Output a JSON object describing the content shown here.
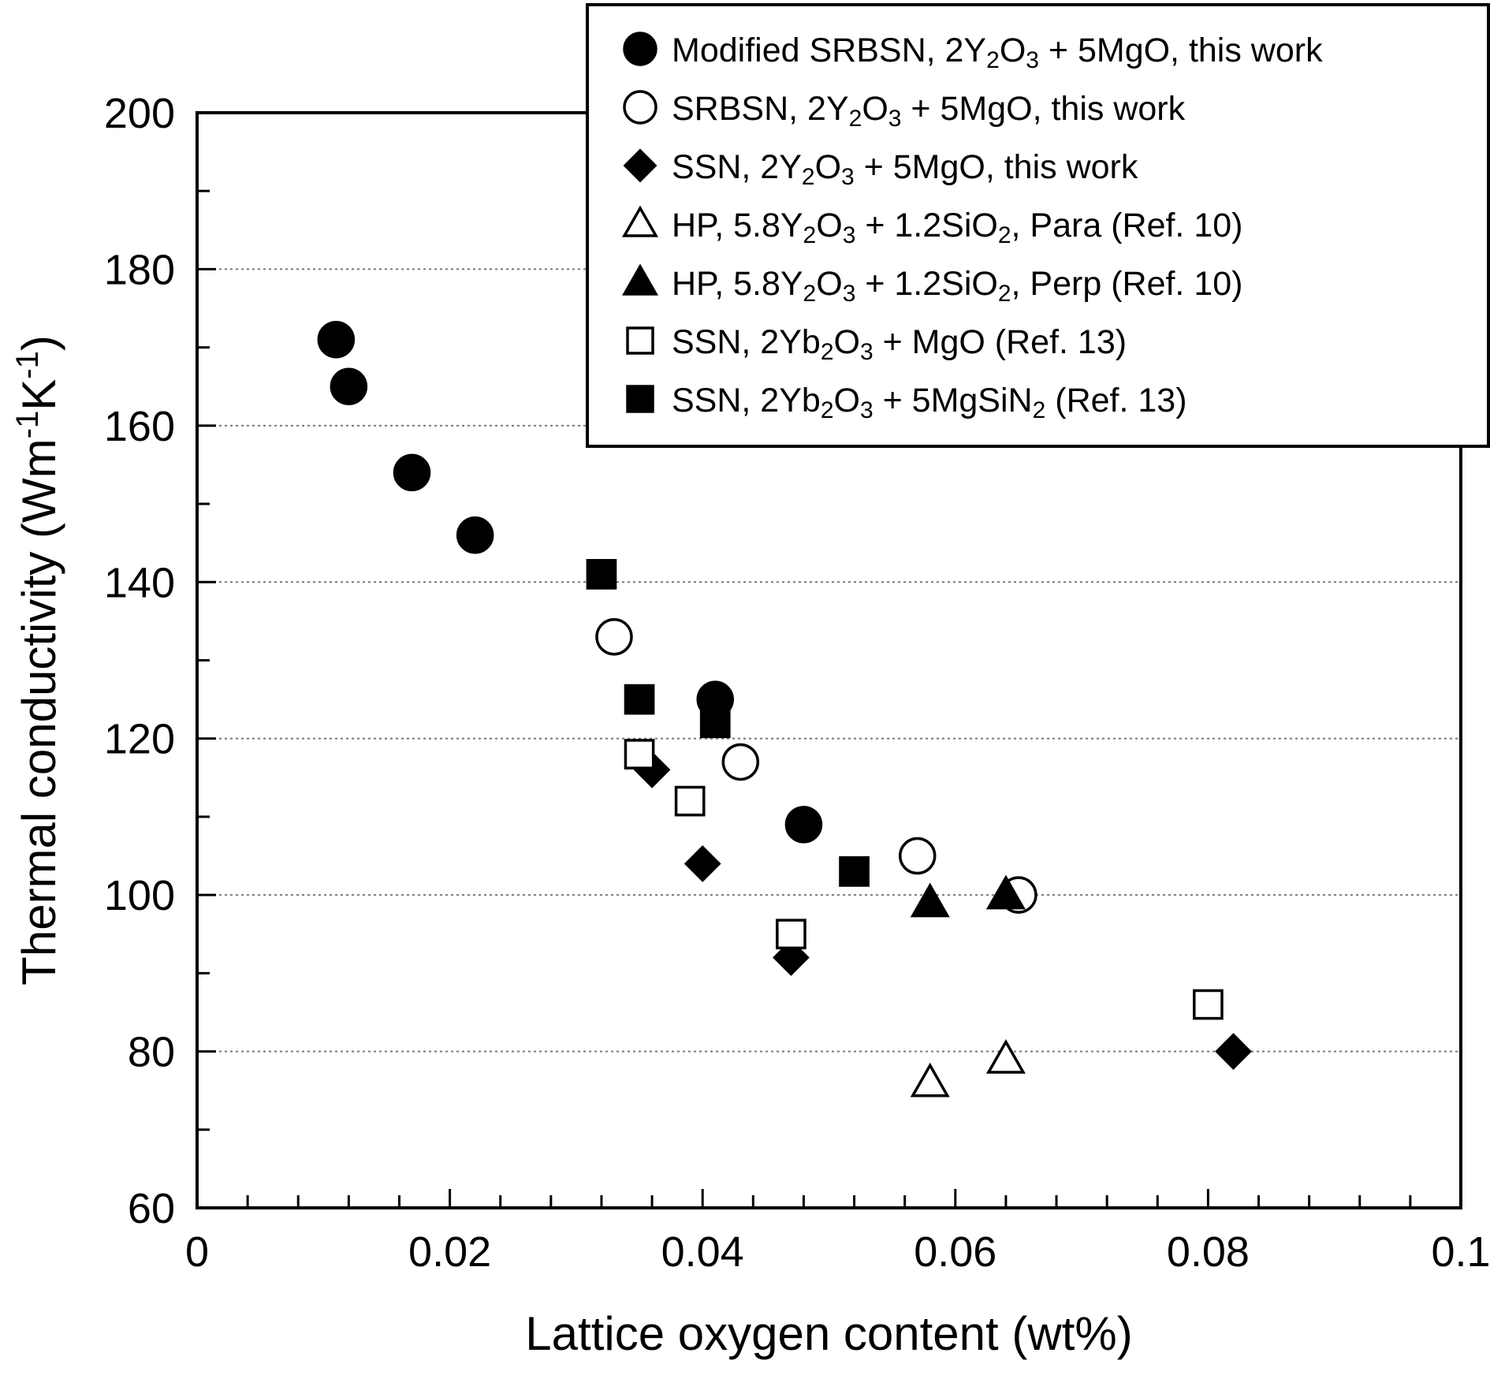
{
  "chart_data": {
    "type": "scatter",
    "xlabel": "Lattice oxygen content (wt%)",
    "ylabel": "Thermal conductivity (Wm-1K-1)",
    "ylabel_parts": [
      "Thermal conductivity (Wm",
      "-1",
      "K",
      "-1",
      ")"
    ],
    "xlim": [
      0,
      0.1
    ],
    "ylim": [
      60,
      200
    ],
    "x_ticks": [
      0,
      0.02,
      0.04,
      0.06,
      0.08,
      0.1
    ],
    "x_tick_labels": [
      "0",
      "0.02",
      "0.04",
      "0.06",
      "0.08",
      "0.1"
    ],
    "x_minor_step": 0.004,
    "y_ticks": [
      60,
      80,
      100,
      120,
      140,
      160,
      180,
      200
    ],
    "y_tick_labels": [
      "60",
      "80",
      "100",
      "120",
      "140",
      "160",
      "180",
      "200"
    ],
    "y_minor_step": 10,
    "y_gridlines": [
      80,
      100,
      120,
      140,
      160,
      180
    ],
    "grid": "horizontal dotted",
    "legend_position": "top-right",
    "series": [
      {
        "name": "Modified SRBSN, 2Y2O3 + 5MgO, this work",
        "name_parts": [
          "Modified SRBSN, 2Y",
          "2",
          "O",
          "3",
          " + 5MgO, this work"
        ],
        "marker": "filled-circle",
        "points": [
          [
            0.011,
            171
          ],
          [
            0.012,
            165
          ],
          [
            0.017,
            154
          ],
          [
            0.022,
            146
          ],
          [
            0.041,
            125
          ],
          [
            0.048,
            109
          ]
        ]
      },
      {
        "name": "SRBSN, 2Y2O3 + 5MgO, this work",
        "name_parts": [
          "SRBSN, 2Y",
          "2",
          "O",
          "3",
          " + 5MgO, this work"
        ],
        "marker": "open-circle",
        "points": [
          [
            0.033,
            133
          ],
          [
            0.043,
            117
          ],
          [
            0.057,
            105
          ],
          [
            0.065,
            100
          ]
        ]
      },
      {
        "name": "SSN, 2Y2O3 + 5MgO, this work",
        "name_parts": [
          "SSN, 2Y",
          "2",
          "O",
          "3",
          " + 5MgO, this work"
        ],
        "marker": "filled-diamond",
        "points": [
          [
            0.036,
            116
          ],
          [
            0.04,
            104
          ],
          [
            0.047,
            92
          ],
          [
            0.082,
            80
          ]
        ]
      },
      {
        "name": "HP, 5.8Y2O3 + 1.2SiO2, Para (Ref. 10)",
        "name_parts": [
          "HP, 5.8Y",
          "2",
          "O",
          "3",
          " + 1.2SiO",
          "2",
          ", Para (Ref. 10)"
        ],
        "marker": "open-triangle",
        "points": [
          [
            0.058,
            76
          ],
          [
            0.064,
            79
          ]
        ]
      },
      {
        "name": "HP, 5.8Y2O3 + 1.2SiO2, Perp (Ref. 10)",
        "name_parts": [
          "HP, 5.8Y",
          "2",
          "O",
          "3",
          " + 1.2SiO",
          "2",
          ", Perp (Ref. 10)"
        ],
        "marker": "filled-triangle",
        "points": [
          [
            0.058,
            99
          ],
          [
            0.064,
            100
          ]
        ]
      },
      {
        "name": "SSN, 2Yb2O3 + MgO (Ref. 13)",
        "name_parts": [
          "SSN, 2Yb",
          "2",
          "O",
          "3",
          " + MgO (Ref. 13)"
        ],
        "marker": "open-square",
        "points": [
          [
            0.035,
            118
          ],
          [
            0.039,
            112
          ],
          [
            0.047,
            95
          ],
          [
            0.08,
            86
          ]
        ]
      },
      {
        "name": "SSN, 2Yb2O3 + 5MgSiN2 (Ref. 13)",
        "name_parts": [
          "SSN, 2Yb",
          "2",
          "O",
          "3",
          " + 5MgSiN",
          "2",
          " (Ref. 13)"
        ],
        "marker": "filled-square",
        "points": [
          [
            0.032,
            141
          ],
          [
            0.035,
            125
          ],
          [
            0.041,
            122
          ],
          [
            0.052,
            103
          ]
        ]
      }
    ]
  }
}
